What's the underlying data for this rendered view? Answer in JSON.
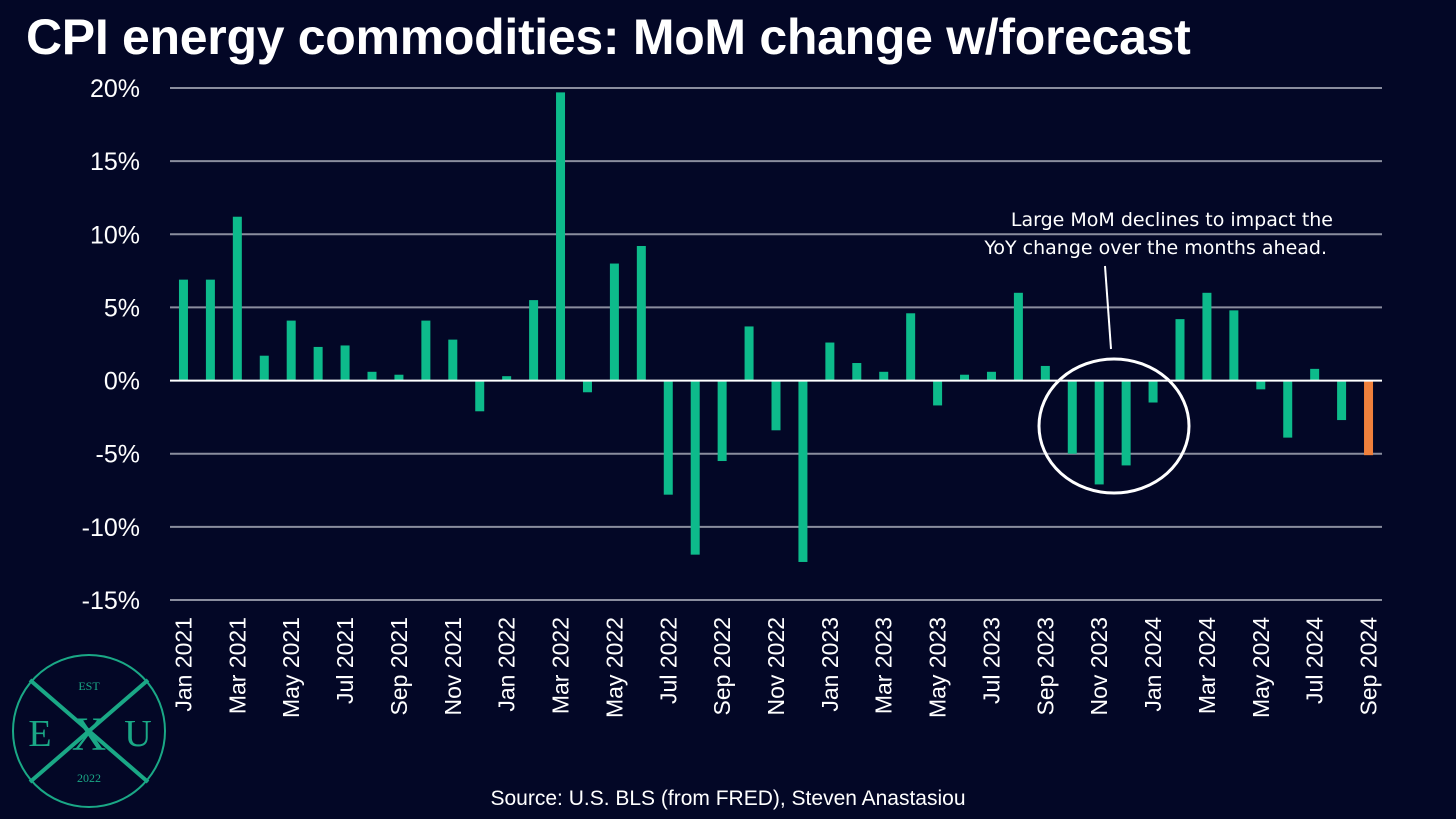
{
  "chart_data": {
    "type": "bar",
    "title": "CPI energy commodities: MoM change w/forecast",
    "ylim": [
      -15,
      20
    ],
    "yticks": [
      "20%",
      "15%",
      "10%",
      "5%",
      "0%",
      "-5%",
      "-10%",
      "-15%"
    ],
    "ytick_values": [
      20,
      15,
      10,
      5,
      0,
      -5,
      -10,
      -15
    ],
    "grid": true,
    "categories": [
      "Jan 2021",
      "Feb 2021",
      "Mar 2021",
      "Apr 2021",
      "May 2021",
      "Jun 2021",
      "Jul 2021",
      "Aug 2021",
      "Sep 2021",
      "Oct 2021",
      "Nov 2021",
      "Dec 2021",
      "Jan 2022",
      "Feb 2022",
      "Mar 2022",
      "Apr 2022",
      "May 2022",
      "Jun 2022",
      "Jul 2022",
      "Aug 2022",
      "Sep 2022",
      "Oct 2022",
      "Nov 2022",
      "Dec 2022",
      "Jan 2023",
      "Feb 2023",
      "Mar 2023",
      "Apr 2023",
      "May 2023",
      "Jun 2023",
      "Jul 2023",
      "Aug 2023",
      "Sep 2023",
      "Oct 2023",
      "Nov 2023",
      "Dec 2023",
      "Jan 2024",
      "Feb 2024",
      "Mar 2024",
      "Apr 2024",
      "May 2024",
      "Jun 2024",
      "Jul 2024",
      "Aug 2024",
      "Sep 2024"
    ],
    "xtick_labels": [
      "Jan 2021",
      "",
      "Mar 2021",
      "",
      "May 2021",
      "",
      "Jul 2021",
      "",
      "Sep 2021",
      "",
      "Nov 2021",
      "",
      "Jan 2022",
      "",
      "Mar 2022",
      "",
      "May 2022",
      "",
      "Jul 2022",
      "",
      "Sep 2022",
      "",
      "Nov 2022",
      "",
      "Jan 2023",
      "",
      "Mar 2023",
      "",
      "May 2023",
      "",
      "Jul 2023",
      "",
      "Sep 2023",
      "",
      "Nov 2023",
      "",
      "Jan 2024",
      "",
      "Mar 2024",
      "",
      "May 2024",
      "",
      "Jul 2024",
      "",
      "Sep 2024"
    ],
    "values": [
      6.9,
      6.9,
      11.2,
      1.7,
      4.1,
      2.3,
      2.4,
      0.6,
      0.4,
      4.1,
      2.8,
      -2.1,
      0.3,
      5.5,
      19.7,
      -0.8,
      8.0,
      9.2,
      -7.8,
      -11.9,
      -5.5,
      3.7,
      -3.4,
      -12.4,
      2.6,
      1.2,
      0.6,
      4.6,
      -1.7,
      0.4,
      0.6,
      6.0,
      1.0,
      -5.0,
      -7.1,
      -5.8,
      -1.5,
      4.2,
      6.0,
      4.8,
      -0.6,
      -3.9,
      0.8,
      -2.7,
      -5.1
    ],
    "forecast": [
      false,
      false,
      false,
      false,
      false,
      false,
      false,
      false,
      false,
      false,
      false,
      false,
      false,
      false,
      false,
      false,
      false,
      false,
      false,
      false,
      false,
      false,
      false,
      false,
      false,
      false,
      false,
      false,
      false,
      false,
      false,
      false,
      false,
      false,
      false,
      false,
      false,
      false,
      false,
      false,
      false,
      false,
      false,
      false,
      true
    ],
    "colors": {
      "actual": "#0dbb8b",
      "forecast": "#f0803c",
      "grid": "#8a8d9e",
      "background": "#030726",
      "axis": "#ffffff"
    },
    "annotation": {
      "lines": [
        "Large MoM declines to impact the",
        "YoY change over the months ahead."
      ]
    }
  },
  "source": "Source: U.S. BLS (from FRED), Steven Anastasiou",
  "logo": {
    "top": "EST",
    "left": "E",
    "center": "X",
    "right": "U",
    "bottom": "2022",
    "color": "#1aa886"
  }
}
